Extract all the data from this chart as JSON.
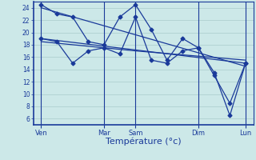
{
  "background_color": "#cce8e8",
  "grid_color": "#aacccc",
  "line_color": "#1a3a9a",
  "ylim": [
    5,
    25
  ],
  "yticks": [
    6,
    8,
    10,
    12,
    14,
    16,
    18,
    20,
    22,
    24
  ],
  "xlabel": "Température (°c)",
  "xlabel_fontsize": 8,
  "day_labels": [
    "Ven",
    "Mar",
    "Sam",
    "Dim",
    "Lun"
  ],
  "day_positions": [
    0,
    8,
    12,
    20,
    26
  ],
  "xlim": [
    -1,
    27
  ],
  "series1_x": [
    0,
    2,
    4,
    6,
    8,
    10,
    12,
    14,
    16,
    18,
    20,
    22,
    24,
    26
  ],
  "series1_y": [
    24.5,
    23.0,
    22.5,
    18.5,
    18.0,
    22.5,
    24.5,
    20.5,
    15.5,
    19.0,
    17.5,
    13.0,
    8.5,
    15.0
  ],
  "series2_x": [
    0,
    2,
    4,
    6,
    8,
    10,
    12,
    14,
    16,
    18,
    20,
    22,
    24,
    26
  ],
  "series2_y": [
    19.0,
    18.5,
    15.0,
    17.0,
    17.5,
    16.5,
    22.5,
    15.5,
    15.0,
    17.0,
    17.5,
    13.5,
    6.5,
    15.0
  ],
  "trend1_x": [
    0,
    26
  ],
  "trend1_y": [
    24.0,
    14.5
  ],
  "trend2_x": [
    0,
    26
  ],
  "trend2_y": [
    19.0,
    15.0
  ],
  "trend3_x": [
    0,
    12,
    26
  ],
  "trend3_y": [
    18.5,
    17.0,
    15.5
  ]
}
